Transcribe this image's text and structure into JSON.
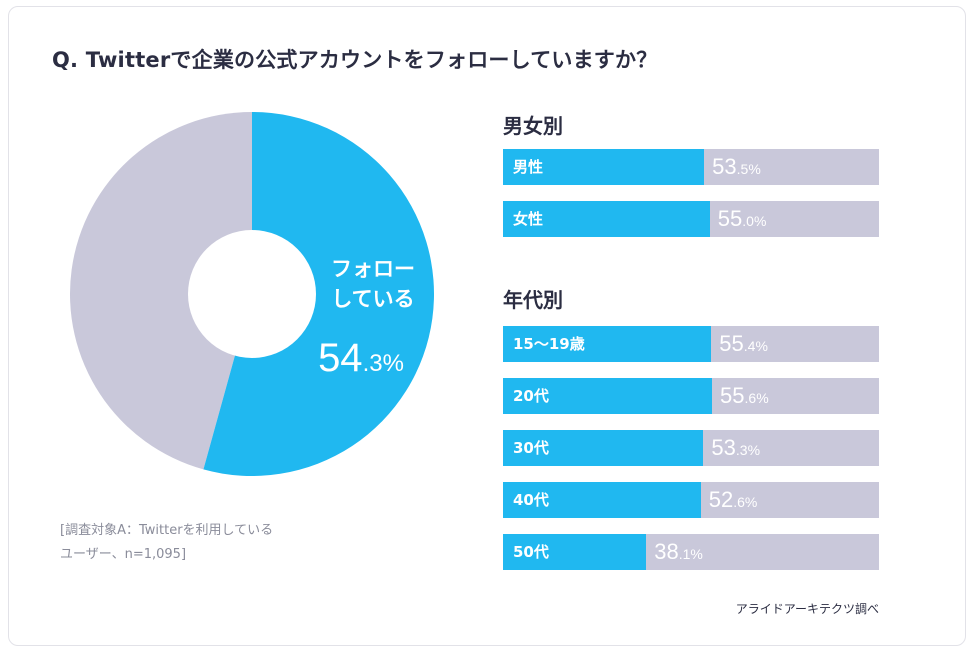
{
  "title": "Q. Twitterで企業の公式アカウントをフォローしていますか？",
  "donut": {
    "label_line1": "フォロー",
    "label_line2": "している",
    "value_int": "54",
    "value_dec": ".3%"
  },
  "note_line1": "[調査対象A：Twitterを利用している",
  "note_line2": "ユーザー、n=1,095]",
  "gender": {
    "title": "男女別",
    "items": [
      {
        "label": "男性",
        "value_int": "53",
        "value_dec": ".5%"
      },
      {
        "label": "女性",
        "value_int": "55",
        "value_dec": ".0%"
      }
    ]
  },
  "age": {
    "title": "年代別",
    "items": [
      {
        "label": "15〜19歳",
        "value_int": "55",
        "value_dec": ".4%"
      },
      {
        "label": "20代",
        "value_int": "55",
        "value_dec": ".6%"
      },
      {
        "label": "30代",
        "value_int": "53",
        "value_dec": ".3%"
      },
      {
        "label": "40代",
        "value_int": "52",
        "value_dec": ".6%"
      },
      {
        "label": "50代",
        "value_int": "38",
        "value_dec": ".1%"
      }
    ]
  },
  "credit": "アライドアーキテクツ調べ",
  "colors": {
    "accent": "#20b8f0",
    "rest": "#c9c8da"
  },
  "chart_data": [
    {
      "type": "pie",
      "categories": [
        "フォローしている",
        ""
      ],
      "values": [
        54.3,
        45.7
      ]
    },
    {
      "type": "bar",
      "title": "男女別",
      "categories": [
        "男性",
        "女性"
      ],
      "values": [
        53.5,
        55.0
      ],
      "ylim": [
        0,
        100
      ]
    },
    {
      "type": "bar",
      "title": "年代別",
      "categories": [
        "15〜19歳",
        "20代",
        "30代",
        "40代",
        "50代"
      ],
      "values": [
        55.4,
        55.6,
        53.3,
        52.6,
        38.1
      ],
      "ylim": [
        0,
        100
      ]
    }
  ]
}
